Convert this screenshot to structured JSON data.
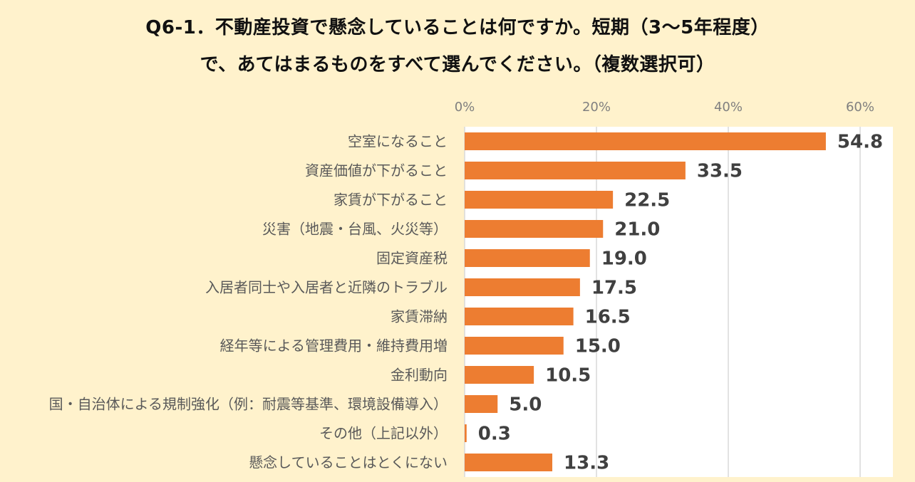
{
  "title": {
    "line1": "Q6-1．不動産投資で懸念していることは何ですか。短期（3～5年程度）",
    "line2": "で、あてはまるものをすべて選んでください。（複数選択可）"
  },
  "chart_data": {
    "type": "bar",
    "orientation": "horizontal",
    "xlim": [
      0,
      60
    ],
    "xticks": [
      {
        "value": 0,
        "label": "0%"
      },
      {
        "value": 20,
        "label": "20%"
      },
      {
        "value": 40,
        "label": "40%"
      },
      {
        "value": 60,
        "label": "60%"
      }
    ],
    "categories": [
      "空室になること",
      "資産価値が下がること",
      "家賃が下がること",
      "災害（地震・台風、火災等）",
      "固定資産税",
      "入居者同士や入居者と近隣のトラブル",
      "家賃滞納",
      "経年等による管理費用・維持費用増",
      "金利動向",
      "国・自治体による規制強化（例：耐震等基準、環境設備導入）",
      "その他（上記以外）",
      "懸念していることはとくにない"
    ],
    "values": [
      54.8,
      33.5,
      22.5,
      21.0,
      19.0,
      17.5,
      16.5,
      15.0,
      10.5,
      5.0,
      0.3,
      13.3
    ],
    "value_labels": [
      "54.8",
      "33.5",
      "22.5",
      "21.0",
      "19.0",
      "17.5",
      "16.5",
      "15.0",
      "10.5",
      "5.0",
      "0.3",
      "13.3"
    ],
    "colors": {
      "bar": "#ed7d31",
      "plot_bg": "#ffffff",
      "grid": "#d9d9d9"
    }
  }
}
